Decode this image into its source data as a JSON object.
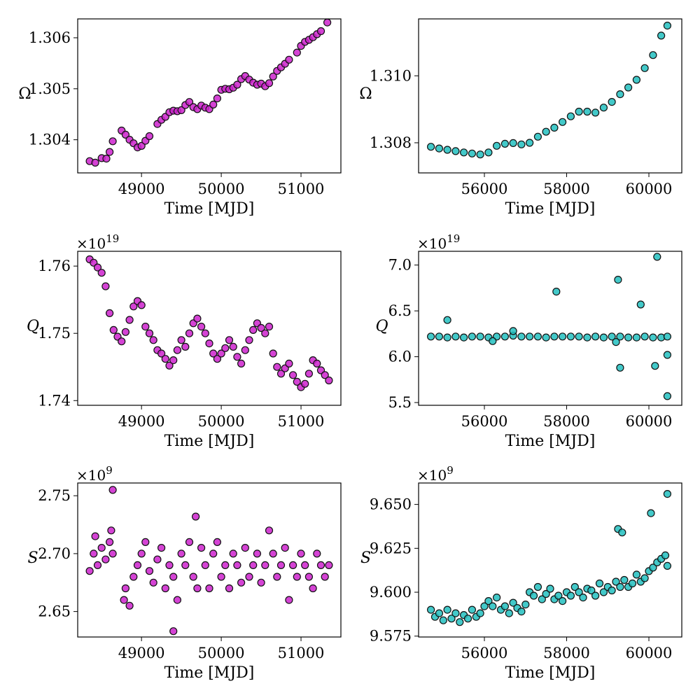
{
  "colors": {
    "left": "#cc22cc",
    "right": "#22c0c0",
    "edge": "#111111"
  },
  "chart_data": [
    {
      "type": "scatter",
      "panel": "top-left",
      "xlabel": "Time [MJD]",
      "ylabel": "Ω",
      "offset": "",
      "xlim": [
        48200,
        51500
      ],
      "ylim": [
        1.30335,
        1.30637
      ],
      "xticks": [
        49000,
        50000,
        51000
      ],
      "xtick_labels": [
        "49000",
        "50000",
        "51000"
      ],
      "yticks": [
        1.304,
        1.305,
        1.306
      ],
      "ytick_labels": [
        "1.304",
        "1.305",
        "1.306"
      ],
      "x": [
        48350,
        48420,
        48500,
        48560,
        48600,
        48640,
        48750,
        48800,
        48850,
        48900,
        48950,
        49000,
        49050,
        49100,
        49200,
        49250,
        49300,
        49350,
        49400,
        49450,
        49500,
        49550,
        49600,
        49650,
        49700,
        49750,
        49800,
        49850,
        49900,
        49950,
        50000,
        50050,
        50100,
        50150,
        50200,
        50250,
        50300,
        50350,
        50400,
        50450,
        50500,
        50550,
        50600,
        50650,
        50700,
        50750,
        50800,
        50850,
        50950,
        51000,
        51050,
        51100,
        51150,
        51200,
        51250,
        51330
      ],
      "y": [
        1.30358,
        1.30355,
        1.30364,
        1.30363,
        1.30376,
        1.30397,
        1.30418,
        1.3041,
        1.304,
        1.30393,
        1.30385,
        1.30388,
        1.30398,
        1.30407,
        1.30431,
        1.30439,
        1.30445,
        1.30454,
        1.30457,
        1.30456,
        1.30458,
        1.30468,
        1.30474,
        1.30464,
        1.3046,
        1.30467,
        1.30463,
        1.3046,
        1.30469,
        1.30481,
        1.30498,
        1.305,
        1.30499,
        1.30502,
        1.30508,
        1.30519,
        1.30525,
        1.30518,
        1.30512,
        1.30508,
        1.3051,
        1.30505,
        1.30511,
        1.30524,
        1.30535,
        1.30542,
        1.30549,
        1.30557,
        1.30571,
        1.30584,
        1.30592,
        1.30596,
        1.30601,
        1.30607,
        1.30613,
        1.3063
      ]
    },
    {
      "type": "scatter",
      "panel": "top-right",
      "xlabel": "Time [MJD]",
      "ylabel": "Ω",
      "offset": "",
      "xlim": [
        54400,
        60800
      ],
      "ylim": [
        1.3071,
        1.3117
      ],
      "xticks": [
        56000,
        58000,
        60000
      ],
      "xtick_labels": [
        "56000",
        "58000",
        "60000"
      ],
      "yticks": [
        1.308,
        1.31
      ],
      "ytick_labels": [
        "1.308",
        "1.310"
      ],
      "x": [
        54700,
        54900,
        55100,
        55300,
        55500,
        55700,
        55900,
        56100,
        56300,
        56500,
        56700,
        56900,
        57100,
        57300,
        57500,
        57700,
        57900,
        58100,
        58300,
        58500,
        58700,
        58900,
        59100,
        59300,
        59500,
        59700,
        59900,
        60100,
        60300,
        60450
      ],
      "y": [
        1.30788,
        1.30783,
        1.30779,
        1.30775,
        1.30771,
        1.30768,
        1.30765,
        1.30771,
        1.30791,
        1.30797,
        1.30799,
        1.30795,
        1.308,
        1.30818,
        1.30833,
        1.30845,
        1.30862,
        1.30879,
        1.30893,
        1.30893,
        1.3089,
        1.30905,
        1.30922,
        1.30945,
        1.30965,
        1.30988,
        1.31023,
        1.31062,
        1.3112,
        1.3115
      ]
    },
    {
      "type": "scatter",
      "panel": "middle-left",
      "xlabel": "Time [MJD]",
      "ylabel": "Q",
      "offset": "×10",
      "offset_exp": "19",
      "xlim": [
        48200,
        51500
      ],
      "ylim": [
        1.7393,
        1.7622
      ],
      "xticks": [
        49000,
        50000,
        51000
      ],
      "xtick_labels": [
        "49000",
        "50000",
        "51000"
      ],
      "yticks": [
        1.74,
        1.75,
        1.76
      ],
      "ytick_labels": [
        "1.74",
        "1.75",
        "1.76"
      ],
      "x": [
        48350,
        48400,
        48450,
        48500,
        48550,
        48600,
        48650,
        48700,
        48750,
        48800,
        48850,
        48900,
        48950,
        49000,
        49050,
        49100,
        49150,
        49200,
        49250,
        49300,
        49350,
        49400,
        49450,
        49500,
        49550,
        49600,
        49650,
        49700,
        49750,
        49800,
        49850,
        49900,
        49950,
        50000,
        50050,
        50100,
        50150,
        50200,
        50250,
        50300,
        50350,
        50400,
        50450,
        50500,
        50550,
        50600,
        50650,
        50700,
        50750,
        50800,
        50850,
        50900,
        50950,
        51000,
        51050,
        51100,
        51150,
        51200,
        51250,
        51300,
        51350
      ],
      "y": [
        1.761,
        1.7605,
        1.7598,
        1.759,
        1.757,
        1.753,
        1.7505,
        1.7495,
        1.7488,
        1.7502,
        1.752,
        1.754,
        1.7548,
        1.7542,
        1.751,
        1.75,
        1.749,
        1.7475,
        1.747,
        1.7462,
        1.7452,
        1.746,
        1.7475,
        1.749,
        1.748,
        1.75,
        1.7515,
        1.7522,
        1.751,
        1.75,
        1.7485,
        1.747,
        1.7462,
        1.747,
        1.7478,
        1.749,
        1.748,
        1.7465,
        1.7455,
        1.7475,
        1.749,
        1.7505,
        1.7515,
        1.7508,
        1.75,
        1.751,
        1.747,
        1.745,
        1.744,
        1.7448,
        1.7455,
        1.7438,
        1.7428,
        1.742,
        1.7425,
        1.744,
        1.746,
        1.7455,
        1.7445,
        1.7438,
        1.743
      ]
    },
    {
      "type": "scatter",
      "panel": "middle-right",
      "xlabel": "Time [MJD]",
      "ylabel": "Q",
      "offset": "×10",
      "offset_exp": "19",
      "xlim": [
        54400,
        60800
      ],
      "ylim": [
        5.47,
        7.15
      ],
      "xticks": [
        56000,
        58000,
        60000
      ],
      "xtick_labels": [
        "56000",
        "58000",
        "60000"
      ],
      "yticks": [
        5.5,
        6.0,
        6.5,
        7.0
      ],
      "ytick_labels": [
        "5.5",
        "6.0",
        "6.5",
        "7.0"
      ],
      "x": [
        54700,
        54900,
        55100,
        55300,
        55500,
        55700,
        55900,
        56100,
        56300,
        56500,
        56700,
        56900,
        57100,
        57300,
        57500,
        57700,
        57900,
        58100,
        58300,
        58500,
        58700,
        58900,
        59100,
        59300,
        59500,
        59700,
        59900,
        60100,
        60300,
        60450,
        55100,
        56200,
        56700,
        57750,
        59200,
        59250,
        59300,
        59800,
        60150,
        60200,
        60450,
        60450
      ],
      "y": [
        6.22,
        6.22,
        6.21,
        6.22,
        6.21,
        6.22,
        6.22,
        6.21,
        6.22,
        6.22,
        6.23,
        6.22,
        6.22,
        6.22,
        6.21,
        6.22,
        6.22,
        6.22,
        6.22,
        6.21,
        6.22,
        6.21,
        6.22,
        6.22,
        6.21,
        6.21,
        6.22,
        6.21,
        6.21,
        6.22,
        6.4,
        6.17,
        6.28,
        6.71,
        6.16,
        6.84,
        5.88,
        6.57,
        5.9,
        7.09,
        6.02,
        5.57
      ]
    },
    {
      "type": "scatter",
      "panel": "bottom-left",
      "xlabel": "Time [MJD]",
      "ylabel": "S",
      "offset": "×10",
      "offset_exp": "9",
      "xlim": [
        48200,
        51500
      ],
      "ylim": [
        2.628,
        2.761
      ],
      "xticks": [
        49000,
        50000,
        51000
      ],
      "xtick_labels": [
        "49000",
        "50000",
        "51000"
      ],
      "yticks": [
        2.65,
        2.7,
        2.75
      ],
      "ytick_labels": [
        "2.65",
        "2.70",
        "2.75"
      ],
      "x": [
        48350,
        48400,
        48420,
        48450,
        48500,
        48550,
        48600,
        48620,
        48640,
        48780,
        48800,
        48850,
        48900,
        48950,
        49000,
        49050,
        49100,
        49150,
        49200,
        49250,
        49300,
        49350,
        49400,
        49450,
        49500,
        49550,
        49600,
        49650,
        49700,
        49750,
        49800,
        49850,
        49900,
        49950,
        50000,
        50050,
        50100,
        50150,
        50200,
        50250,
        50300,
        50350,
        50400,
        50450,
        50500,
        50550,
        50600,
        50650,
        50700,
        50750,
        50800,
        50850,
        50900,
        50950,
        51000,
        51050,
        51100,
        51150,
        51200,
        51250,
        51300,
        51350,
        48640,
        49400,
        49680
      ],
      "y": [
        2.685,
        2.7,
        2.715,
        2.69,
        2.705,
        2.695,
        2.71,
        2.72,
        2.7,
        2.66,
        2.67,
        2.655,
        2.68,
        2.69,
        2.7,
        2.71,
        2.685,
        2.675,
        2.695,
        2.705,
        2.67,
        2.69,
        2.68,
        2.66,
        2.7,
        2.69,
        2.71,
        2.68,
        2.67,
        2.705,
        2.69,
        2.67,
        2.7,
        2.71,
        2.68,
        2.69,
        2.67,
        2.7,
        2.69,
        2.675,
        2.705,
        2.68,
        2.69,
        2.7,
        2.675,
        2.69,
        2.72,
        2.7,
        2.68,
        2.69,
        2.705,
        2.66,
        2.69,
        2.68,
        2.7,
        2.69,
        2.68,
        2.67,
        2.7,
        2.69,
        2.68,
        2.69,
        2.755,
        2.633,
        2.732
      ]
    },
    {
      "type": "scatter",
      "panel": "bottom-right",
      "xlabel": "Time [MJD]",
      "ylabel": "S",
      "offset": "×10",
      "offset_exp": "9",
      "xlim": [
        54400,
        60800
      ],
      "ylim": [
        9.5745,
        9.6622
      ],
      "xticks": [
        56000,
        58000,
        60000
      ],
      "xtick_labels": [
        "56000",
        "58000",
        "60000"
      ],
      "yticks": [
        9.575,
        9.6,
        9.625,
        9.65
      ],
      "ytick_labels": [
        "9.575",
        "9.600",
        "9.625",
        "9.650"
      ],
      "x": [
        54700,
        54800,
        54900,
        55000,
        55100,
        55200,
        55300,
        55400,
        55500,
        55600,
        55700,
        55800,
        55900,
        56000,
        56100,
        56200,
        56300,
        56400,
        56500,
        56600,
        56700,
        56800,
        56900,
        57000,
        57100,
        57200,
        57300,
        57400,
        57500,
        57600,
        57700,
        57800,
        57900,
        58000,
        58100,
        58200,
        58300,
        58400,
        58500,
        58600,
        58700,
        58800,
        58900,
        59000,
        59100,
        59200,
        59300,
        59400,
        59500,
        59600,
        59700,
        59800,
        59900,
        60000,
        60100,
        60200,
        60300,
        60400,
        60450,
        59250,
        59350,
        60050,
        60450
      ],
      "y": [
        9.59,
        9.586,
        9.588,
        9.584,
        9.59,
        9.585,
        9.588,
        9.583,
        9.587,
        9.585,
        9.59,
        9.586,
        9.588,
        9.592,
        9.595,
        9.592,
        9.597,
        9.59,
        9.592,
        9.588,
        9.594,
        9.591,
        9.589,
        9.593,
        9.6,
        9.598,
        9.603,
        9.596,
        9.599,
        9.602,
        9.596,
        9.598,
        9.595,
        9.6,
        9.598,
        9.603,
        9.6,
        9.597,
        9.602,
        9.601,
        9.598,
        9.605,
        9.6,
        9.603,
        9.601,
        9.606,
        9.603,
        9.607,
        9.603,
        9.605,
        9.61,
        9.606,
        9.608,
        9.612,
        9.614,
        9.617,
        9.619,
        9.621,
        9.615,
        9.636,
        9.634,
        9.645,
        9.656
      ]
    }
  ]
}
